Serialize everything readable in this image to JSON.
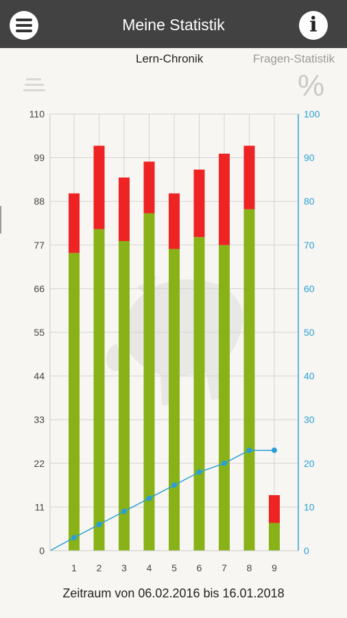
{
  "app": {
    "title": "Meine Statistik"
  },
  "tabs": [
    {
      "label": "Lern-Chronik",
      "active": true
    },
    {
      "label": "Fragen-Statistik",
      "active": false
    }
  ],
  "icons": {
    "menu": "hamburger-menu-icon",
    "info": "info-icon",
    "list": "list-icon",
    "percent": "percent-icon",
    "info_glyph": "i",
    "percent_glyph": "%"
  },
  "footer": {
    "period": "Zeitraum von 06.02.2016 bis 16.01.2018"
  },
  "chart_data": {
    "type": "bar",
    "stacked": true,
    "categories": [
      "1",
      "2",
      "3",
      "4",
      "5",
      "6",
      "7",
      "8",
      "9"
    ],
    "series": [
      {
        "color": "#88b218",
        "values": [
          75,
          81,
          78,
          85,
          76,
          79,
          77,
          86,
          7
        ]
      },
      {
        "color": "#ee2323",
        "values": [
          15,
          21,
          16,
          13,
          14,
          17,
          23,
          16,
          7
        ]
      }
    ],
    "line_series": {
      "axis": "right",
      "color": "#2a9fd6",
      "values": [
        3,
        6,
        9,
        12,
        15,
        18,
        20,
        23,
        23
      ]
    },
    "left_axis": {
      "ylim": [
        0,
        110
      ],
      "ticks": [
        0,
        11,
        22,
        33,
        44,
        55,
        66,
        77,
        88,
        99,
        110
      ],
      "color": "#444444"
    },
    "right_axis": {
      "ylim": [
        0,
        100
      ],
      "ticks": [
        0,
        10,
        20,
        30,
        40,
        50,
        60,
        70,
        80,
        90,
        100
      ],
      "color": "#2a9fd6"
    },
    "grid": true,
    "xlabel": "",
    "ylabel": "",
    "title": ""
  }
}
